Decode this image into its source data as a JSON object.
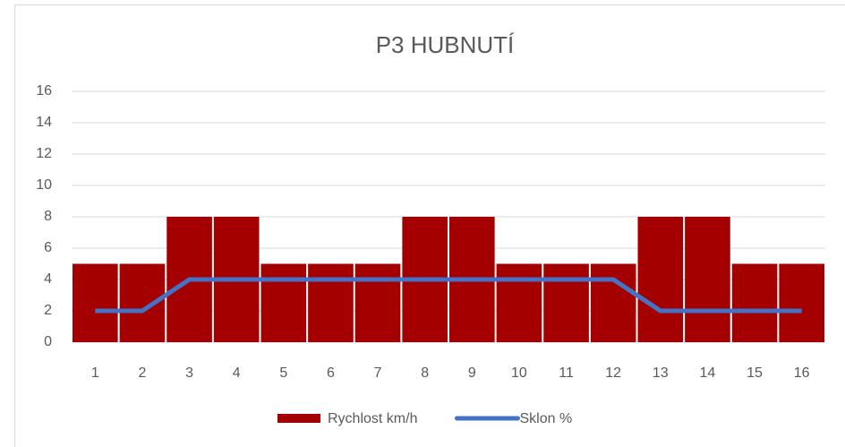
{
  "chart_data": {
    "type": "bar",
    "title": "P3 HUBNUTÍ",
    "categories": [
      "1",
      "2",
      "3",
      "4",
      "5",
      "6",
      "7",
      "8",
      "9",
      "10",
      "11",
      "12",
      "13",
      "14",
      "15",
      "16"
    ],
    "series": [
      {
        "name": "Rychlost km/h",
        "type": "bar",
        "color": "#a50000",
        "values": [
          5,
          5,
          8,
          8,
          5,
          5,
          5,
          8,
          8,
          5,
          5,
          5,
          8,
          8,
          5,
          5
        ]
      },
      {
        "name": "Sklon %",
        "type": "line",
        "color": "#4472c4",
        "values": [
          2,
          2,
          4,
          4,
          4,
          4,
          4,
          4,
          4,
          4,
          4,
          4,
          2,
          2,
          2,
          2
        ]
      }
    ],
    "ylim": [
      0,
      16
    ],
    "yticks": [
      0,
      2,
      4,
      6,
      8,
      10,
      12,
      14,
      16
    ],
    "grid": true,
    "legend": "bottom"
  }
}
